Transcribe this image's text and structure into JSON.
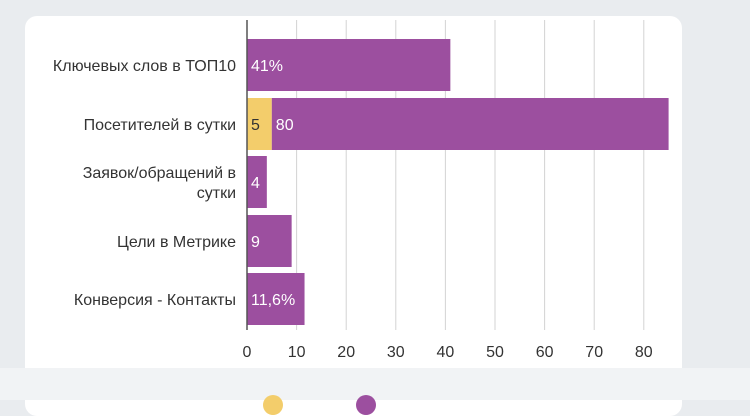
{
  "chart_data": {
    "type": "bar",
    "orientation": "horizontal",
    "stacked": true,
    "categories": [
      [
        "Ключевых слов в ТОП10"
      ],
      [
        "Посетителей в сутки"
      ],
      [
        "Заявок/обращений в",
        "сутки"
      ],
      [
        "Цели в Метрике"
      ],
      [
        "Конверсия - Контакты"
      ]
    ],
    "series": [
      {
        "color": "#f3cd6b",
        "values": [
          0,
          5,
          0,
          0,
          0
        ],
        "labels": [
          "",
          "5",
          "",
          "",
          ""
        ]
      },
      {
        "color": "#9c4f9f",
        "values": [
          41,
          80,
          4,
          9,
          11.6
        ],
        "labels": [
          "41%",
          "80",
          "4",
          "9",
          "11,6%"
        ]
      }
    ],
    "x_ticks": [
      0,
      10,
      20,
      30,
      40,
      50,
      60,
      70,
      80
    ],
    "xlim": [
      0,
      86
    ],
    "grid": true
  },
  "legend": {
    "colors": [
      "#f3cd6b",
      "#9c4f9f"
    ]
  }
}
